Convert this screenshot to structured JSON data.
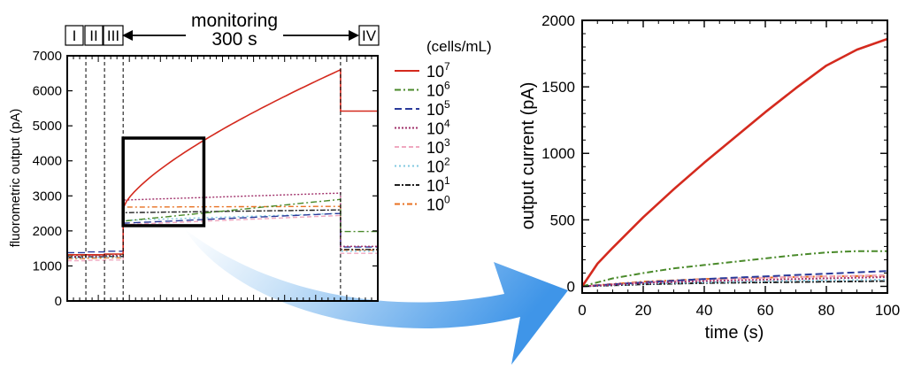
{
  "colors": {
    "c7": "#d42a1e",
    "c6": "#4a8a2a",
    "c5": "#2a3a9a",
    "c4": "#a0306a",
    "c3": "#f0a8c0",
    "c2": "#80c8e0",
    "c1": "#202020",
    "c0": "#e87020",
    "arrow": "#4a9ee8"
  },
  "legend": {
    "title": "(cells/mL)",
    "entries": [
      {
        "key": "c7",
        "base": "10",
        "exp": "7",
        "dash": ""
      },
      {
        "key": "c6",
        "base": "10",
        "exp": "6",
        "dash": "7,3,2,3"
      },
      {
        "key": "c5",
        "base": "10",
        "exp": "5",
        "dash": "8,4"
      },
      {
        "key": "c4",
        "base": "10",
        "exp": "4",
        "dash": "2,2"
      },
      {
        "key": "c3",
        "base": "10",
        "exp": "3",
        "dash": "5,3"
      },
      {
        "key": "c2",
        "base": "10",
        "exp": "2",
        "dash": "2,3"
      },
      {
        "key": "c1",
        "base": "10",
        "exp": "1",
        "dash": "6,2,2,2"
      },
      {
        "key": "c0",
        "base": "10",
        "exp": "0",
        "dash": "6,3,2,3"
      }
    ]
  },
  "chart_data": [
    {
      "type": "line",
      "ylabel": "fluorometric output (pA)",
      "xlabel": "",
      "ylim": [
        0,
        7000
      ],
      "yticks": [
        0,
        1000,
        2000,
        3000,
        4000,
        5000,
        6000,
        7000
      ],
      "x_range": [
        0,
        1000
      ],
      "x_units": "relative time (tick labels not shown)",
      "phase_boundaries": [
        60,
        120,
        180,
        880
      ],
      "phase_labels": [
        "I",
        "II",
        "III",
        "IV"
      ],
      "annotation": {
        "top": "monitoring",
        "bottom": "300 s"
      },
      "series": [
        {
          "key": "c7",
          "name": "10^7",
          "pre": [
            1320,
            1320,
            1340
          ],
          "mon_start": 2650,
          "mon_end": 6600,
          "shape": "growth",
          "post": 5420
        },
        {
          "key": "c6",
          "name": "10^6",
          "pre": [
            1300,
            1310,
            1330
          ],
          "mon_start": 2280,
          "mon_end": 2900,
          "shape": "linear",
          "post": 1980
        },
        {
          "key": "c5",
          "name": "10^5",
          "pre": [
            1380,
            1400,
            1420
          ],
          "mon_start": 2220,
          "mon_end": 2500,
          "shape": "linear",
          "post": 1540
        },
        {
          "key": "c4",
          "name": "10^4",
          "pre": [
            1270,
            1280,
            1300
          ],
          "mon_start": 2880,
          "mon_end": 3080,
          "shape": "linear",
          "post": 1560
        },
        {
          "key": "c3",
          "name": "10^3",
          "pre": [
            1150,
            1160,
            1170
          ],
          "mon_start": 2180,
          "mon_end": 2440,
          "shape": "linear",
          "post": 1360
        },
        {
          "key": "c2",
          "name": "10^2",
          "pre": [
            1230,
            1240,
            1250
          ],
          "mon_start": 2300,
          "mon_end": 2500,
          "shape": "linear",
          "post": 1420
        },
        {
          "key": "c1",
          "name": "10^1",
          "pre": [
            1250,
            1260,
            1270
          ],
          "mon_start": 2520,
          "mon_end": 2600,
          "shape": "linear",
          "post": 1470
        },
        {
          "key": "c0",
          "name": "10^0",
          "pre": [
            1210,
            1220,
            1230
          ],
          "mon_start": 2680,
          "mon_end": 2700,
          "shape": "linear",
          "post": 1450
        }
      ],
      "inset_region": {
        "x": [
          180,
          440
        ],
        "y": [
          2150,
          4650
        ]
      }
    },
    {
      "type": "line",
      "xlabel": "time (s)",
      "ylabel": "output current (pA)",
      "xlim": [
        0,
        100
      ],
      "ylim": [
        -50,
        2000
      ],
      "xticks": [
        0,
        20,
        40,
        60,
        80,
        100
      ],
      "yticks": [
        0,
        500,
        1000,
        1500,
        2000
      ],
      "series": [
        {
          "key": "c7",
          "name": "10^7",
          "x": [
            0,
            5,
            10,
            20,
            30,
            40,
            50,
            60,
            70,
            80,
            90,
            100
          ],
          "y": [
            0,
            170,
            290,
            520,
            730,
            930,
            1120,
            1310,
            1490,
            1660,
            1780,
            1860
          ]
        },
        {
          "key": "c6",
          "name": "10^6",
          "x": [
            0,
            10,
            20,
            30,
            40,
            50,
            60,
            70,
            80,
            90,
            100
          ],
          "y": [
            0,
            60,
            100,
            135,
            160,
            185,
            210,
            235,
            255,
            265,
            265
          ]
        },
        {
          "key": "c5",
          "name": "10^5",
          "x": [
            0,
            20,
            40,
            60,
            80,
            100
          ],
          "y": [
            0,
            30,
            55,
            75,
            95,
            115
          ]
        },
        {
          "key": "c4",
          "name": "10^4",
          "x": [
            0,
            20,
            40,
            60,
            80,
            100
          ],
          "y": [
            0,
            25,
            40,
            50,
            60,
            70
          ]
        },
        {
          "key": "c3",
          "name": "10^3",
          "x": [
            0,
            20,
            40,
            60,
            80,
            100
          ],
          "y": [
            0,
            30,
            50,
            65,
            75,
            85
          ]
        },
        {
          "key": "c2",
          "name": "10^2",
          "x": [
            0,
            20,
            40,
            60,
            80,
            100
          ],
          "y": [
            0,
            20,
            30,
            40,
            45,
            50
          ]
        },
        {
          "key": "c1",
          "name": "10^1",
          "x": [
            0,
            20,
            40,
            60,
            80,
            100
          ],
          "y": [
            0,
            15,
            25,
            30,
            35,
            40
          ]
        },
        {
          "key": "c0",
          "name": "10^0",
          "x": [
            0,
            20,
            40,
            60,
            80,
            100
          ],
          "y": [
            0,
            35,
            55,
            65,
            75,
            80
          ]
        }
      ]
    }
  ]
}
